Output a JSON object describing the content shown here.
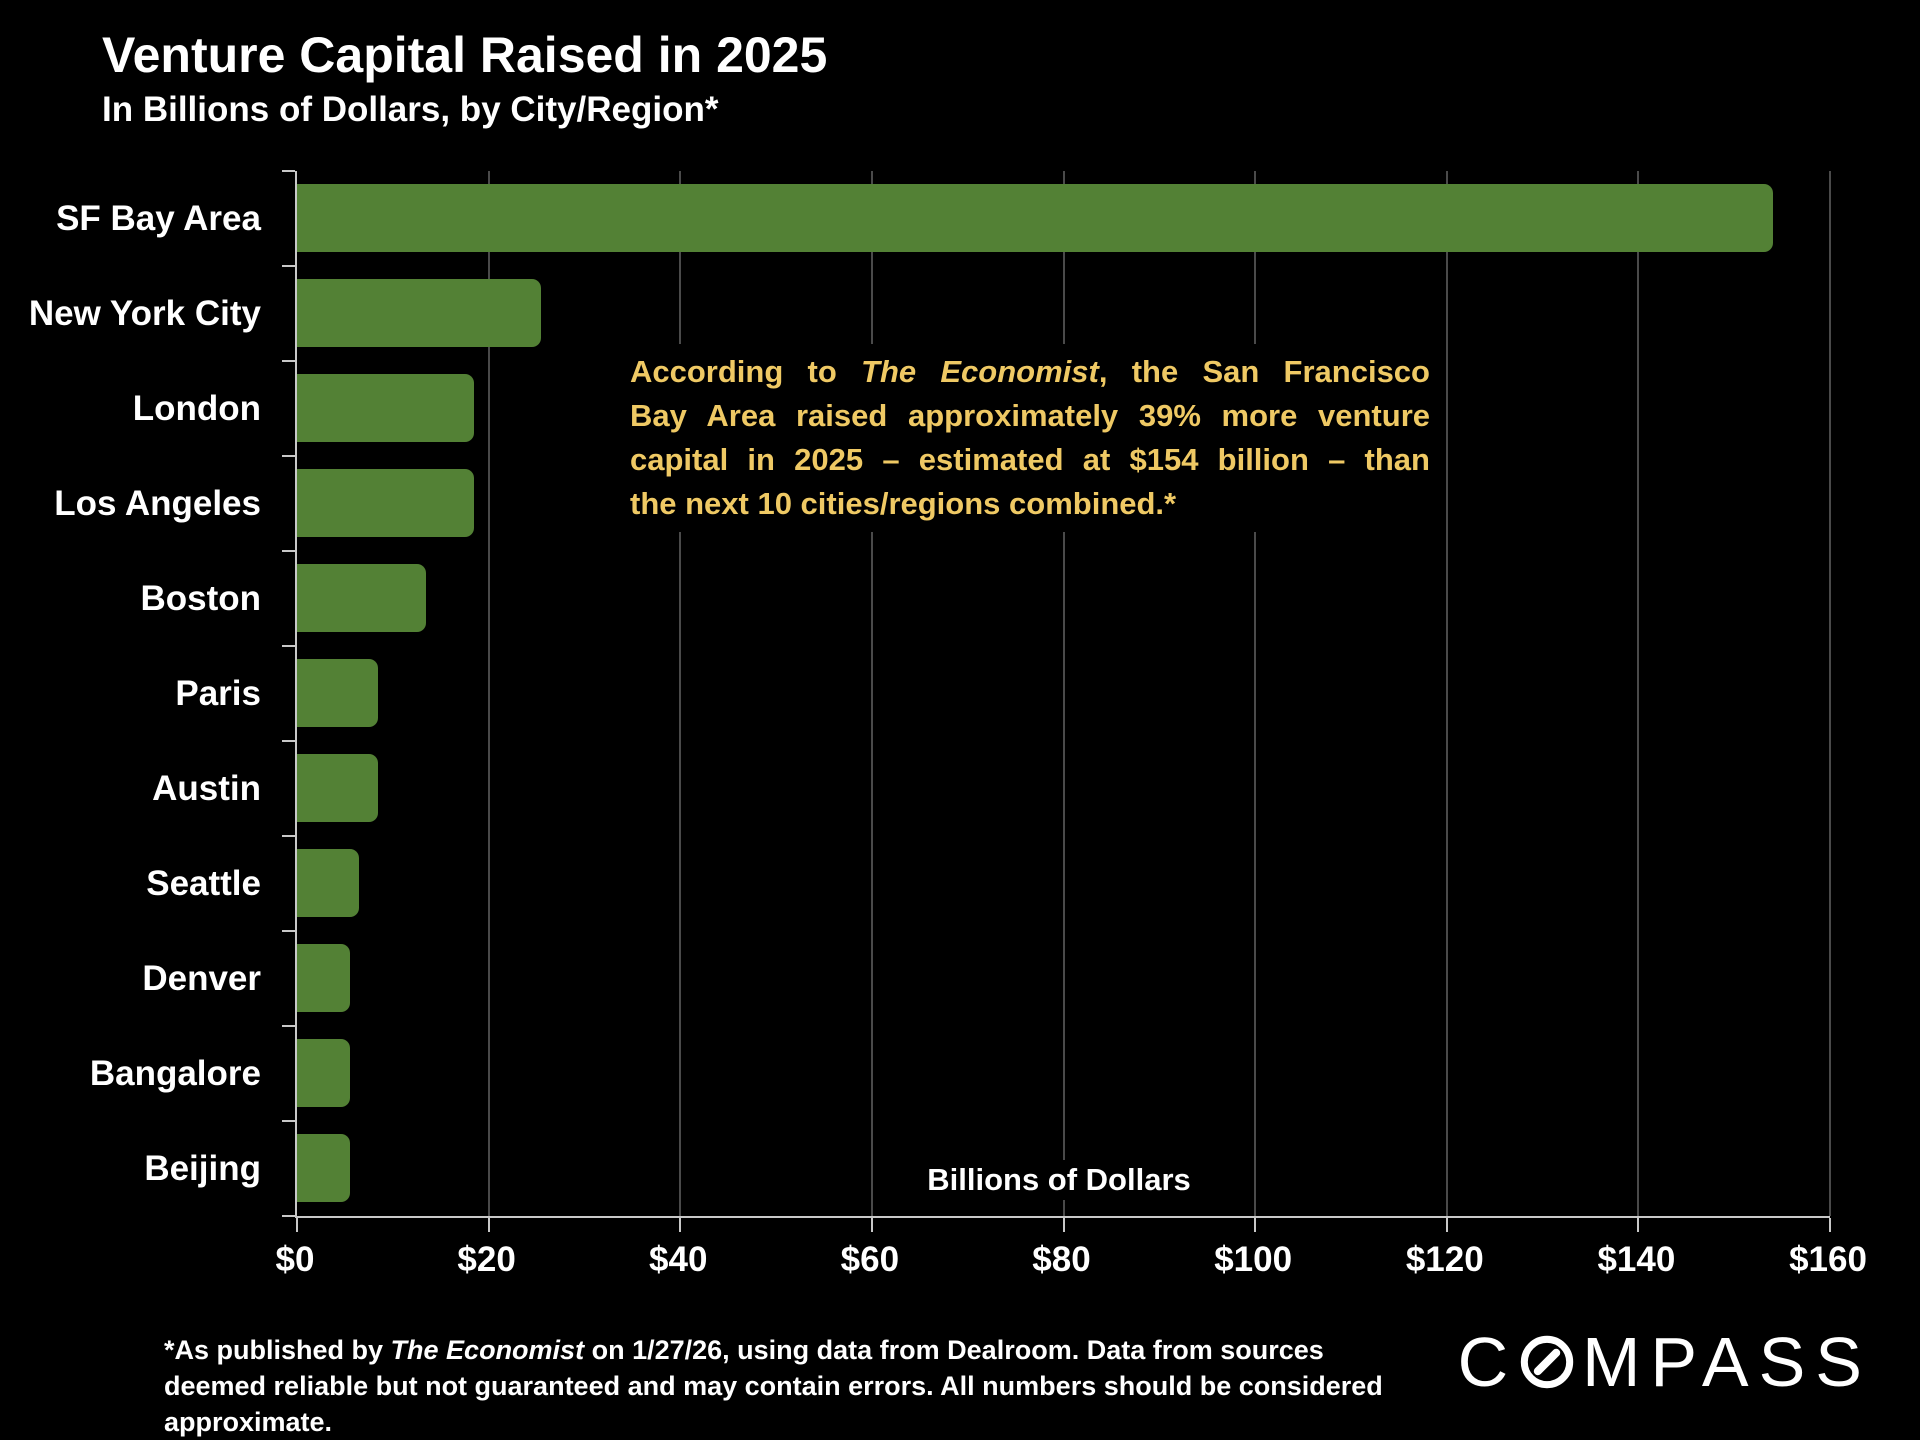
{
  "slide": {
    "title": "Venture Capital Raised in 2025",
    "subtitle": "In Billions of Dollars, by City/Region*",
    "annotation": {
      "line1_pre": "According to ",
      "line1_italic": "The Economist",
      "line1_post": ", the San Francisco",
      "line2": "Bay Area raised approximately 39% more venture",
      "line3": "capital in 2025 – estimated at $154 billion – than",
      "line4": "the next 10 cities/regions combined.*",
      "text_color": "#efc964"
    },
    "footnote": {
      "pre": "*As published by ",
      "italic": "The Economist",
      "post": " on 1/27/26, using data from Dealroom. Data from sources deemed reliable but not guaranteed and may contain errors. All numbers should be considered approximate."
    },
    "logo": {
      "part1": "C",
      "part2": "MPASS",
      "name": "COMPASS"
    }
  },
  "chart_data": {
    "type": "bar",
    "orientation": "horizontal",
    "title": "Venture Capital Raised in 2025",
    "subtitle": "In Billions of Dollars, by City/Region*",
    "categories": [
      "SF Bay Area",
      "New York City",
      "London",
      "Los Angeles",
      "Boston",
      "Paris",
      "Austin",
      "Seattle",
      "Denver",
      "Bangalore",
      "Beijing"
    ],
    "values": [
      154,
      25.5,
      18.5,
      18.5,
      13.5,
      8.5,
      8.5,
      6.5,
      5.5,
      5.5,
      5.5
    ],
    "xlabel": "Billions of Dollars",
    "xlim": [
      0,
      160
    ],
    "xtick_interval": 20,
    "xtick_labels": [
      "$0",
      "$20",
      "$40",
      "$60",
      "$80",
      "$100",
      "$120",
      "$140",
      "$160"
    ],
    "bar_color": "#538135",
    "grid": true,
    "legend": false,
    "background": "#000000"
  }
}
